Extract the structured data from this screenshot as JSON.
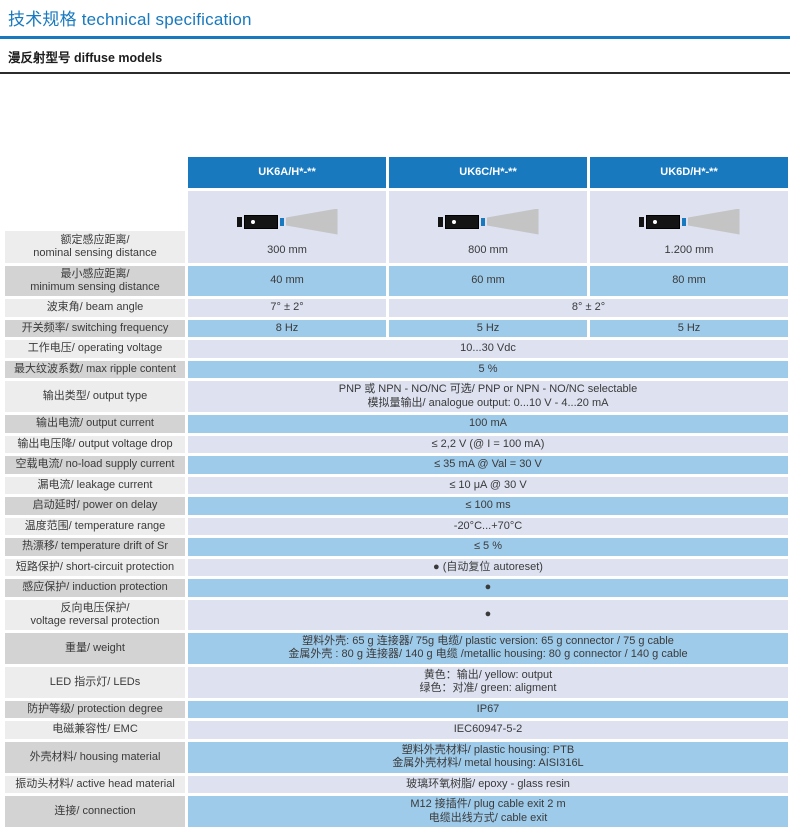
{
  "page": {
    "title": "技术规格 technical specification",
    "subtitle": "漫反射型号 diffuse models"
  },
  "colors": {
    "accent_blue": "#1879bf",
    "row_blue": "#9fcbea",
    "row_lavender": "#dde1f0",
    "label_light": "#ededed",
    "label_dark": "#d3d3d3",
    "header_text": "#ffffff"
  },
  "table": {
    "column_headers": [
      "UK6A/H*-**",
      "UK6C/H*-**",
      "UK6D/H*-**"
    ],
    "rows": [
      {
        "name": "nominal-sensing-distance",
        "kind": "row-sensor",
        "label_lines": [
          "额定感应距离/",
          "nominal sensing distance"
        ],
        "cells": [
          {
            "span": 1,
            "icon": "sensor-icon",
            "lines": [
              "300 mm"
            ]
          },
          {
            "span": 1,
            "icon": "sensor-icon",
            "lines": [
              "800 mm"
            ]
          },
          {
            "span": 1,
            "icon": "sensor-icon",
            "lines": [
              "1.200 mm"
            ]
          }
        ]
      },
      {
        "name": "minimum-sensing-distance",
        "label_lines": [
          "最小感应距离/",
          "minimum sensing distance"
        ],
        "cells": [
          {
            "span": 1,
            "lines": [
              "40 mm"
            ]
          },
          {
            "span": 1,
            "lines": [
              "60 mm"
            ]
          },
          {
            "span": 1,
            "lines": [
              "80 mm"
            ]
          }
        ]
      },
      {
        "name": "beam-angle",
        "label_lines": [
          "波束角/ beam angle"
        ],
        "cells": [
          {
            "span": 1,
            "lines": [
              "7° ± 2°"
            ]
          },
          {
            "span": 2,
            "lines": [
              "8° ± 2°"
            ]
          }
        ]
      },
      {
        "name": "switching-frequency",
        "label_lines": [
          "开关频率/ switching frequency"
        ],
        "cells": [
          {
            "span": 1,
            "lines": [
              "8 Hz"
            ]
          },
          {
            "span": 1,
            "lines": [
              "5 Hz"
            ]
          },
          {
            "span": 1,
            "lines": [
              "5 Hz"
            ]
          }
        ]
      },
      {
        "name": "operating-voltage",
        "label_lines": [
          "工作电压/ operating voltage"
        ],
        "cells": [
          {
            "span": 3,
            "lines": [
              "10...30 Vdc"
            ]
          }
        ]
      },
      {
        "name": "max-ripple-content",
        "label_lines": [
          "最大纹波系数/ max ripple content"
        ],
        "cells": [
          {
            "span": 3,
            "lines": [
              "5 %"
            ]
          }
        ]
      },
      {
        "name": "output-type",
        "label_lines": [
          "输出类型/ output type"
        ],
        "cells": [
          {
            "span": 3,
            "lines": [
              "PNP 或 NPN - NO/NC 可选/ PNP or NPN - NO/NC selectable",
              "模拟量输出/ analogue output: 0...10 V - 4...20 mA"
            ]
          }
        ]
      },
      {
        "name": "output-current",
        "label_lines": [
          "输出电流/ output current"
        ],
        "cells": [
          {
            "span": 3,
            "lines": [
              "100 mA"
            ]
          }
        ]
      },
      {
        "name": "output-voltage-drop",
        "label_lines": [
          "输出电压降/ output voltage drop"
        ],
        "cells": [
          {
            "span": 3,
            "lines": [
              "≤ 2,2 V (@ I = 100 mA)"
            ]
          }
        ]
      },
      {
        "name": "no-load-supply-current",
        "label_lines": [
          "空载电流/ no-load supply current"
        ],
        "cells": [
          {
            "span": 3,
            "lines": [
              "≤ 35 mA @ Val = 30 V"
            ]
          }
        ]
      },
      {
        "name": "leakage-current",
        "label_lines": [
          "漏电流/ leakage current"
        ],
        "cells": [
          {
            "span": 3,
            "lines": [
              "≤ 10 μA @ 30 V"
            ]
          }
        ]
      },
      {
        "name": "power-on-delay",
        "label_lines": [
          "启动延时/ power on delay"
        ],
        "cells": [
          {
            "span": 3,
            "lines": [
              "≤ 100 ms"
            ]
          }
        ]
      },
      {
        "name": "temperature-range",
        "label_lines": [
          "温度范围/ temperature range"
        ],
        "cells": [
          {
            "span": 3,
            "lines": [
              "-20°C...+70°C"
            ]
          }
        ]
      },
      {
        "name": "temperature-drift",
        "label_lines": [
          "热漂移/ temperature drift of Sr"
        ],
        "cells": [
          {
            "span": 3,
            "lines": [
              "≤ 5 %"
            ]
          }
        ]
      },
      {
        "name": "short-circuit-protection",
        "label_lines": [
          "短路保护/ short-circuit protection"
        ],
        "cells": [
          {
            "span": 3,
            "lines": [
              "●  (自动复位 autoreset)"
            ]
          }
        ]
      },
      {
        "name": "induction-protection",
        "label_lines": [
          "感应保护/ induction protection"
        ],
        "cells": [
          {
            "span": 3,
            "lines": [
              "●"
            ]
          }
        ]
      },
      {
        "name": "voltage-reversal-protection",
        "label_lines": [
          "反向电压保护/",
          "voltage reversal protection"
        ],
        "cells": [
          {
            "span": 3,
            "lines": [
              "●"
            ]
          }
        ]
      },
      {
        "name": "weight",
        "label_lines": [
          "重量/ weight"
        ],
        "cells": [
          {
            "span": 3,
            "lines": [
              "塑料外壳: 65 g 连接器/ 75g 电缆/ plastic version: 65 g connector / 75 g cable",
              "金属外壳 : 80 g 连接器/ 140 g 电缆 /metallic housing: 80 g connector / 140 g cable"
            ]
          }
        ]
      },
      {
        "name": "leds",
        "label_lines": [
          "LED 指示灯/ LEDs"
        ],
        "cells": [
          {
            "span": 3,
            "lines": [
              "黄色：输出/ yellow: output",
              "绿色：对准/ green: aligment"
            ]
          }
        ]
      },
      {
        "name": "protection-degree",
        "label_lines": [
          "防护等级/ protection degree"
        ],
        "cells": [
          {
            "span": 3,
            "lines": [
              "IP67"
            ]
          }
        ]
      },
      {
        "name": "emc",
        "label_lines": [
          "电磁兼容性/ EMC"
        ],
        "cells": [
          {
            "span": 3,
            "lines": [
              "IEC60947-5-2"
            ]
          }
        ]
      },
      {
        "name": "housing-material",
        "label_lines": [
          "外壳材料/ housing material"
        ],
        "cells": [
          {
            "span": 3,
            "lines": [
              "塑料外壳材料/ plastic housing: PTB",
              "金属外壳材料/ metal housing: AISI316L"
            ]
          }
        ]
      },
      {
        "name": "active-head-material",
        "label_lines": [
          "振动头材料/ active head material"
        ],
        "cells": [
          {
            "span": 3,
            "lines": [
              "玻璃环氧树脂/ epoxy - glass resin"
            ]
          }
        ]
      },
      {
        "name": "connection",
        "label_lines": [
          "连接/ connection"
        ],
        "cells": [
          {
            "span": 3,
            "lines": [
              "M12 接插件/ plug cable exit 2 m",
              "电缆出线方式/ cable exit"
            ]
          }
        ]
      }
    ]
  }
}
